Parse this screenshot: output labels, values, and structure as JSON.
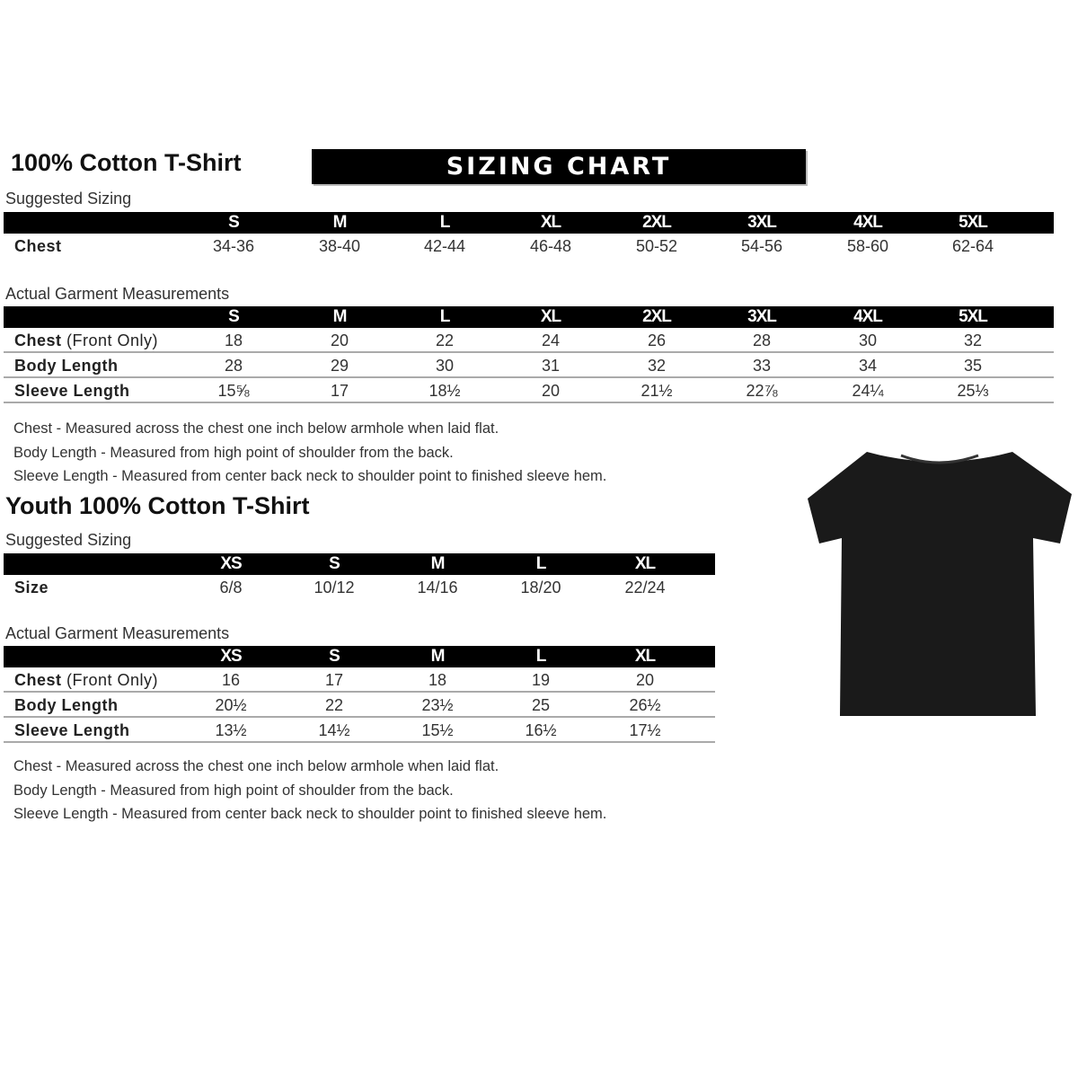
{
  "adult": {
    "title": "100% Cotton T-Shirt",
    "banner": "SIZING CHART",
    "suggested_label": "Suggested Sizing",
    "sizes": [
      "S",
      "M",
      "L",
      "XL",
      "2XL",
      "3XL",
      "4XL",
      "5XL"
    ],
    "suggested_rows": [
      {
        "label": "Chest",
        "values": [
          "34-36",
          "38-40",
          "42-44",
          "46-48",
          "50-52",
          "54-56",
          "58-60",
          "62-64"
        ]
      }
    ],
    "actual_label": "Actual Garment Measurements",
    "actual_rows": [
      {
        "label": "Chest",
        "label_note": "(Front Only)",
        "values": [
          "18",
          "20",
          "22",
          "24",
          "26",
          "28",
          "30",
          "32"
        ]
      },
      {
        "label": "Body Length",
        "values": [
          "28",
          "29",
          "30",
          "31",
          "32",
          "33",
          "34",
          "35"
        ]
      },
      {
        "label": "Sleeve Length",
        "values": [
          "15⅝",
          "17",
          "18½",
          "20",
          "21½",
          "22⅞",
          "24¼",
          "25⅓"
        ]
      }
    ],
    "notes": [
      "Chest - Measured across the chest one inch below armhole when laid flat.",
      "Body Length - Measured from high point of shoulder from the back.",
      "Sleeve Length - Measured from center back neck to shoulder point to finished sleeve hem."
    ]
  },
  "youth": {
    "title": "Youth 100% Cotton T-Shirt",
    "suggested_label": "Suggested Sizing",
    "sizes": [
      "XS",
      "S",
      "M",
      "L",
      "XL"
    ],
    "suggested_rows": [
      {
        "label": "Size",
        "values": [
          "6/8",
          "10/12",
          "14/16",
          "18/20",
          "22/24"
        ]
      }
    ],
    "actual_label": "Actual Garment Measurements",
    "actual_rows": [
      {
        "label": "Chest",
        "label_note": "(Front Only)",
        "values": [
          "16",
          "17",
          "18",
          "19",
          "20"
        ]
      },
      {
        "label": "Body Length",
        "values": [
          "20½",
          "22",
          "23½",
          "25",
          "26½"
        ]
      },
      {
        "label": "Sleeve Length",
        "values": [
          "13½",
          "14½",
          "15½",
          "16½",
          "17½"
        ]
      }
    ],
    "notes": [
      "Chest - Measured across the chest one inch below armhole when laid flat.",
      "Body Length - Measured from high point of shoulder from the back.",
      "Sleeve Length - Measured from center back neck to shoulder point to finished sleeve hem."
    ]
  },
  "tshirt_icon": "black-tshirt",
  "colors": {
    "header": "#000000",
    "shirt": "#1a1a1a"
  }
}
